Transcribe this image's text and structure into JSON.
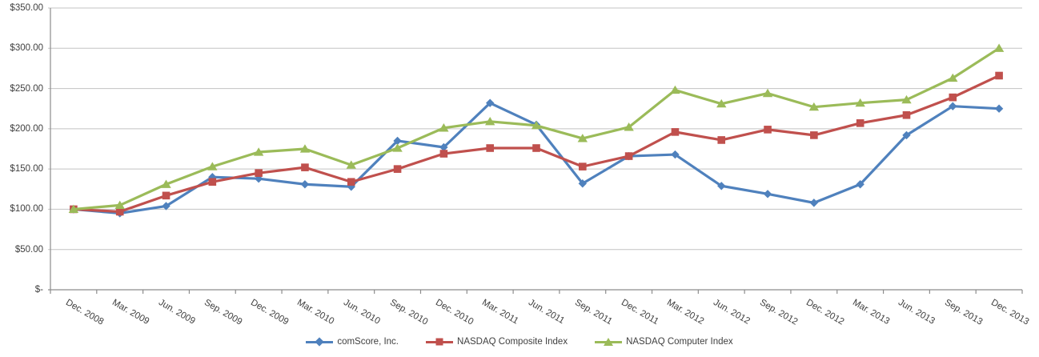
{
  "chart_data": {
    "type": "line",
    "title": "",
    "categories": [
      "Dec. 2008",
      "Mar. 2009",
      "Jun. 2009",
      "Sep. 2009",
      "Dec. 2009",
      "Mar. 2010",
      "Jun. 2010",
      "Sep. 2010",
      "Dec. 2010",
      "Mar. 2011",
      "Jun. 2011",
      "Sep. 2011",
      "Dec. 2011",
      "Mar. 2012",
      "Jun. 2012",
      "Sep. 2012",
      "Dec. 2012",
      "Mar. 2013",
      "Jun. 2013",
      "Sep. 2013",
      "Dec. 2013"
    ],
    "series": [
      {
        "name": "comScore, Inc.",
        "color": "#4F81BD",
        "marker": "diamond",
        "values": [
          100,
          95,
          104,
          140,
          138,
          131,
          128,
          185,
          177,
          232,
          205,
          132,
          166,
          168,
          129,
          119,
          108,
          131,
          192,
          228,
          225
        ]
      },
      {
        "name": "NASDAQ Composite Index",
        "color": "#C0504D",
        "marker": "square",
        "values": [
          100,
          97,
          117,
          134,
          145,
          152,
          134,
          150,
          169,
          176,
          176,
          153,
          166,
          196,
          186,
          199,
          192,
          207,
          217,
          239,
          266
        ]
      },
      {
        "name": "NASDAQ Computer Index",
        "color": "#9BBB59",
        "marker": "triangle",
        "values": [
          100,
          105,
          131,
          153,
          171,
          175,
          155,
          176,
          201,
          209,
          204,
          188,
          202,
          248,
          231,
          244,
          227,
          232,
          236,
          263,
          300
        ]
      }
    ],
    "y_axis": {
      "min": 0,
      "max": 350,
      "step": 50,
      "tick_labels_top_to_bottom": [
        "$350.00",
        "$300.00",
        "$250.00",
        "$200.00",
        "$150.00",
        "$100.00",
        "$50.00",
        "$-"
      ]
    },
    "x_axis": {
      "label_rotation_deg": 30
    },
    "legend_position": "bottom-center",
    "grid": "horizontal",
    "colors": {
      "gridline": "#C3C3C3",
      "axis": "#8C8C8C",
      "text": "#3F3F3F",
      "background": "#FFFFFF"
    }
  }
}
